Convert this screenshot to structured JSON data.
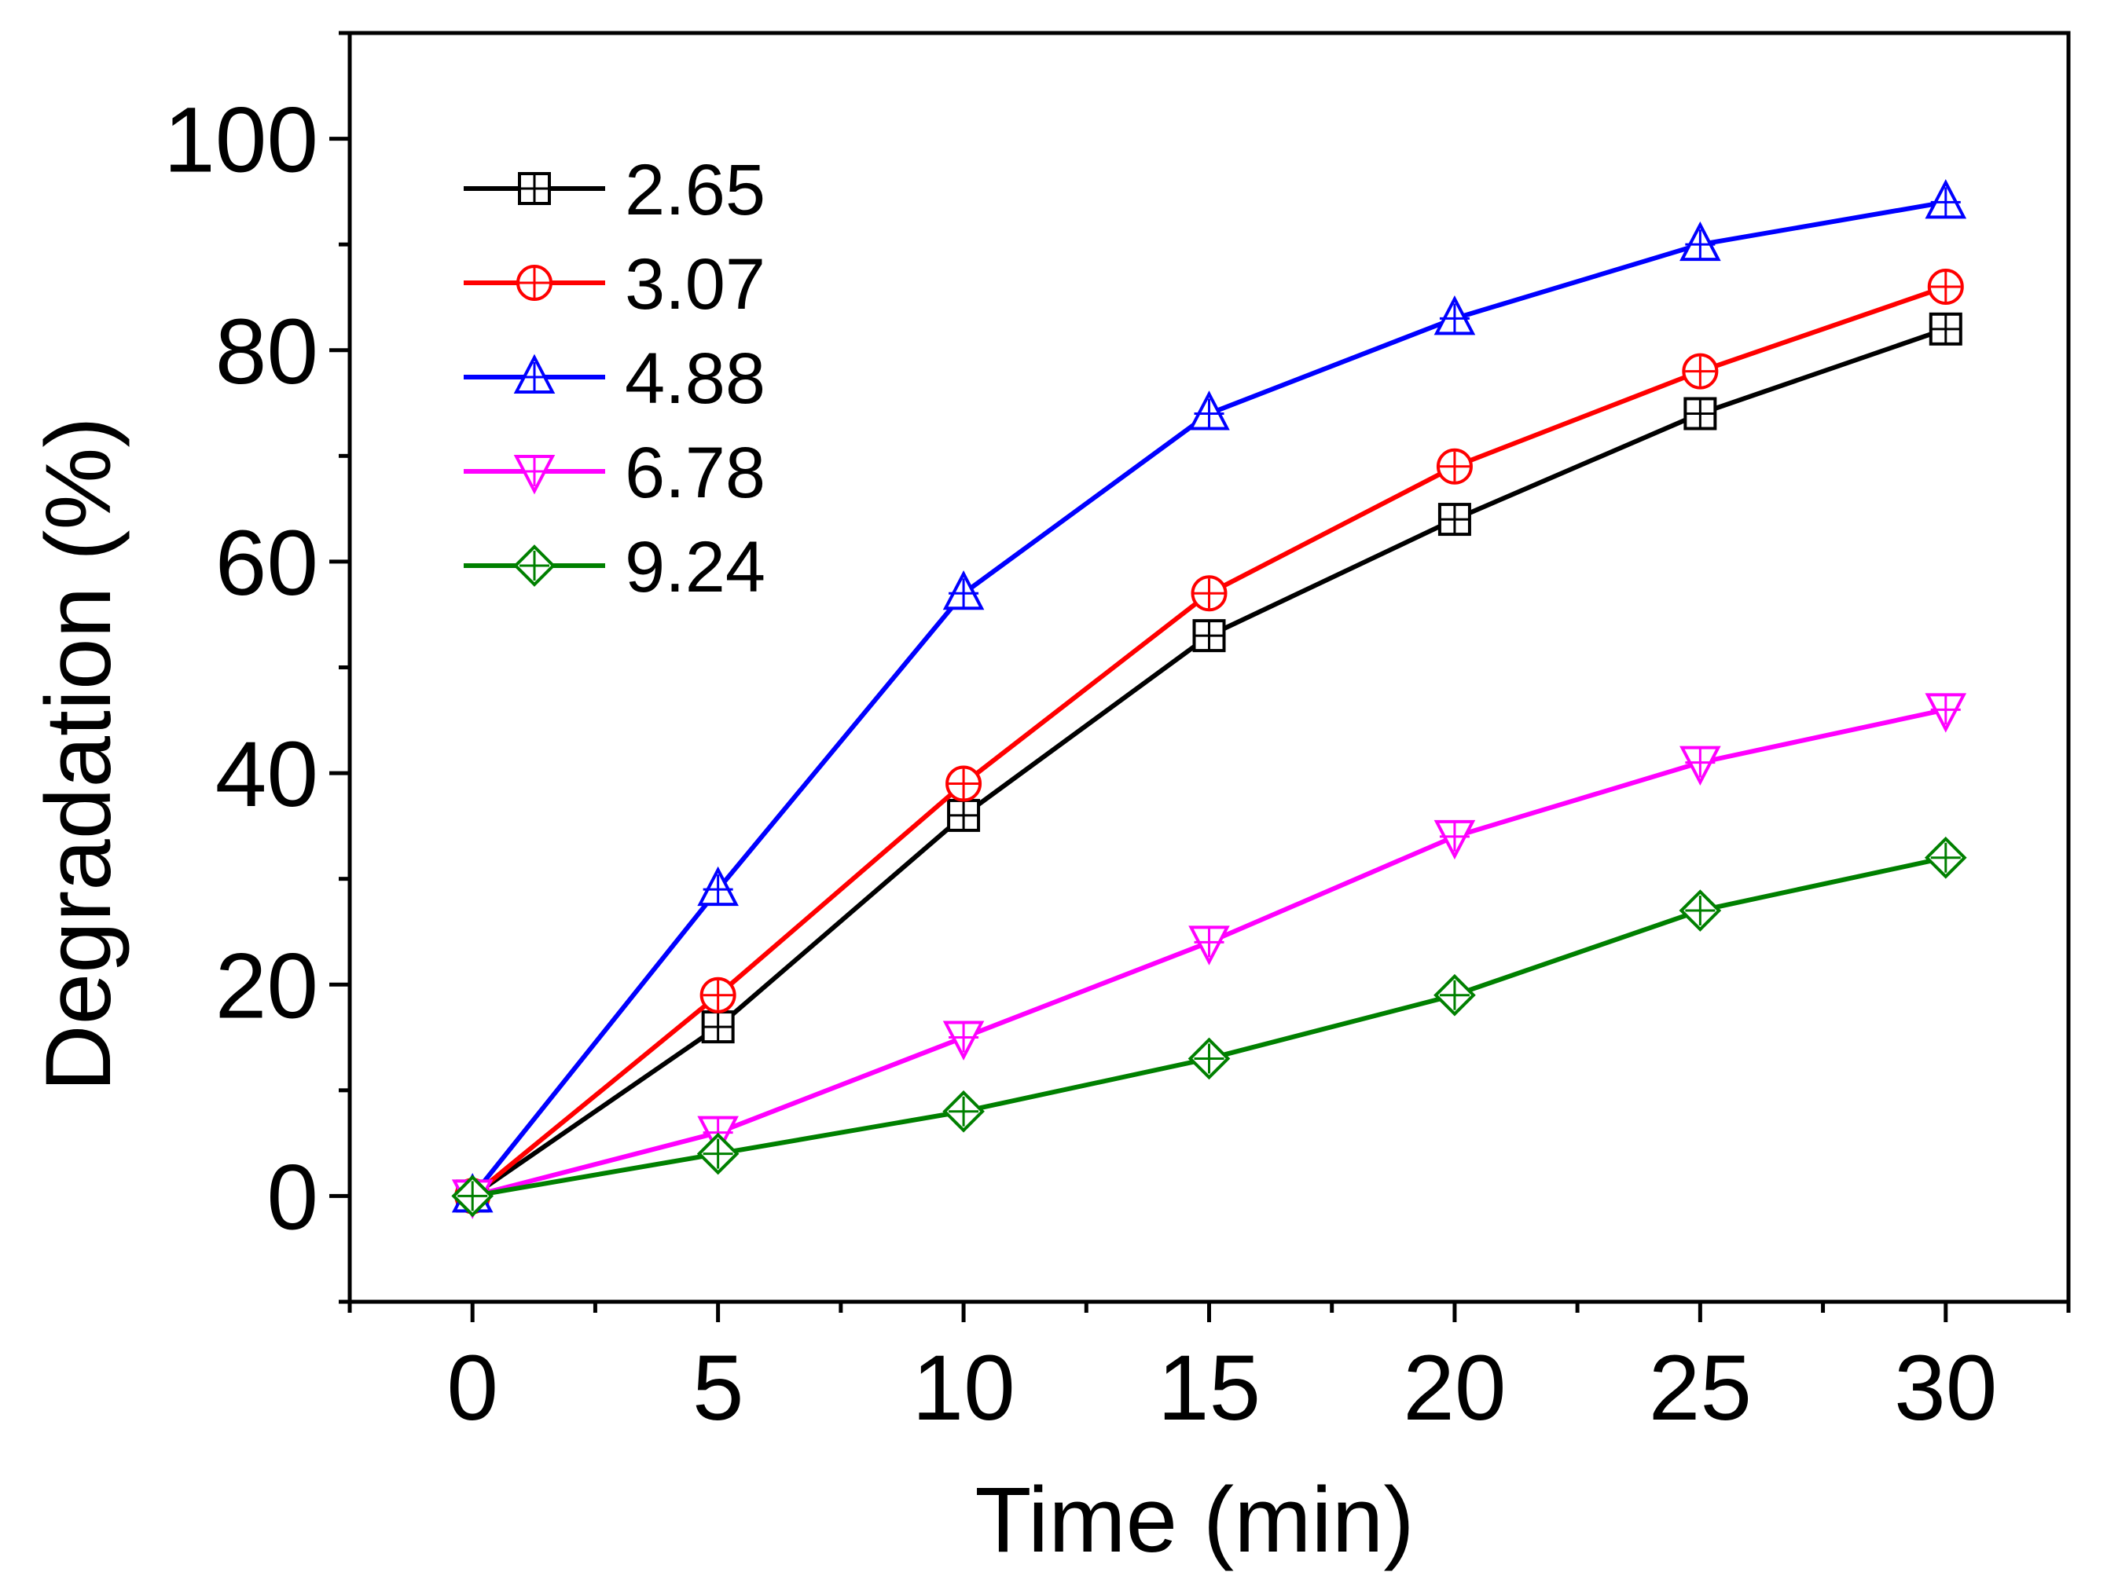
{
  "chart_data": {
    "type": "line",
    "title": "",
    "xlabel": "Time (min)",
    "ylabel": "Degradation (%)",
    "xlim": [
      -2.5,
      32.5
    ],
    "ylim": [
      -10,
      110
    ],
    "x": [
      0,
      5,
      10,
      15,
      20,
      25,
      30
    ],
    "x_ticks": [
      0,
      5,
      10,
      15,
      20,
      25,
      30
    ],
    "x_tick_labels": [
      "0",
      "5",
      "10",
      "15",
      "20",
      "25",
      "30"
    ],
    "y_ticks": [
      0,
      20,
      40,
      60,
      80,
      100
    ],
    "y_tick_labels": [
      "0",
      "20",
      "40",
      "60",
      "80",
      "100"
    ],
    "grid": false,
    "legend_position": "top-left",
    "series": [
      {
        "name": "2.65",
        "color": "#000000",
        "marker": "square",
        "values": [
          0,
          16,
          36,
          53,
          64,
          74,
          82
        ]
      },
      {
        "name": "3.07",
        "color": "#ff0000",
        "marker": "circle",
        "values": [
          0,
          19,
          39,
          57,
          69,
          78,
          86
        ]
      },
      {
        "name": "4.88",
        "color": "#0000ff",
        "marker": "triangle-up",
        "values": [
          0,
          29,
          57,
          74,
          83,
          90,
          94
        ]
      },
      {
        "name": "6.78",
        "color": "#ff00ff",
        "marker": "triangle-down",
        "values": [
          0,
          6,
          15,
          24,
          34,
          41,
          46
        ]
      },
      {
        "name": "9.24",
        "color": "#008000",
        "marker": "diamond",
        "values": [
          0,
          4,
          8,
          13,
          19,
          27,
          32
        ]
      }
    ]
  }
}
